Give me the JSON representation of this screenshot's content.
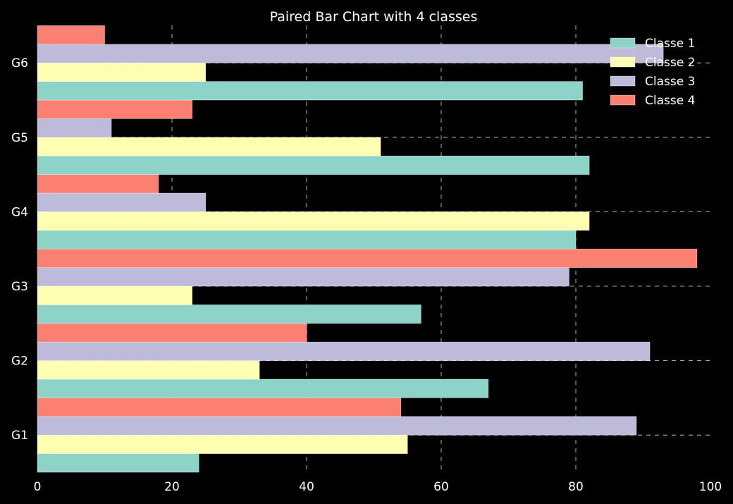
{
  "chart_data": {
    "type": "bar",
    "orientation": "horizontal",
    "title": "Paired Bar Chart with 4 classes",
    "xlabel": "",
    "ylabel": "",
    "categories": [
      "G1",
      "G2",
      "G3",
      "G4",
      "G5",
      "G6"
    ],
    "series": [
      {
        "name": "Classe 1",
        "color": "#8dd3c7",
        "values": [
          24,
          67,
          57,
          80,
          82,
          81
        ]
      },
      {
        "name": "Classe 2",
        "color": "#ffffb3",
        "values": [
          55,
          33,
          23,
          82,
          51,
          25
        ]
      },
      {
        "name": "Classe 3",
        "color": "#bebada",
        "values": [
          89,
          91,
          79,
          25,
          11,
          93
        ]
      },
      {
        "name": "Classe 4",
        "color": "#fb8072",
        "values": [
          54,
          40,
          98,
          18,
          23,
          10
        ]
      }
    ],
    "xlim": [
      0,
      100
    ],
    "xticks": [
      0,
      20,
      40,
      60,
      80,
      100
    ],
    "grid": true,
    "legend_position": "top-right",
    "background": "#000000"
  }
}
